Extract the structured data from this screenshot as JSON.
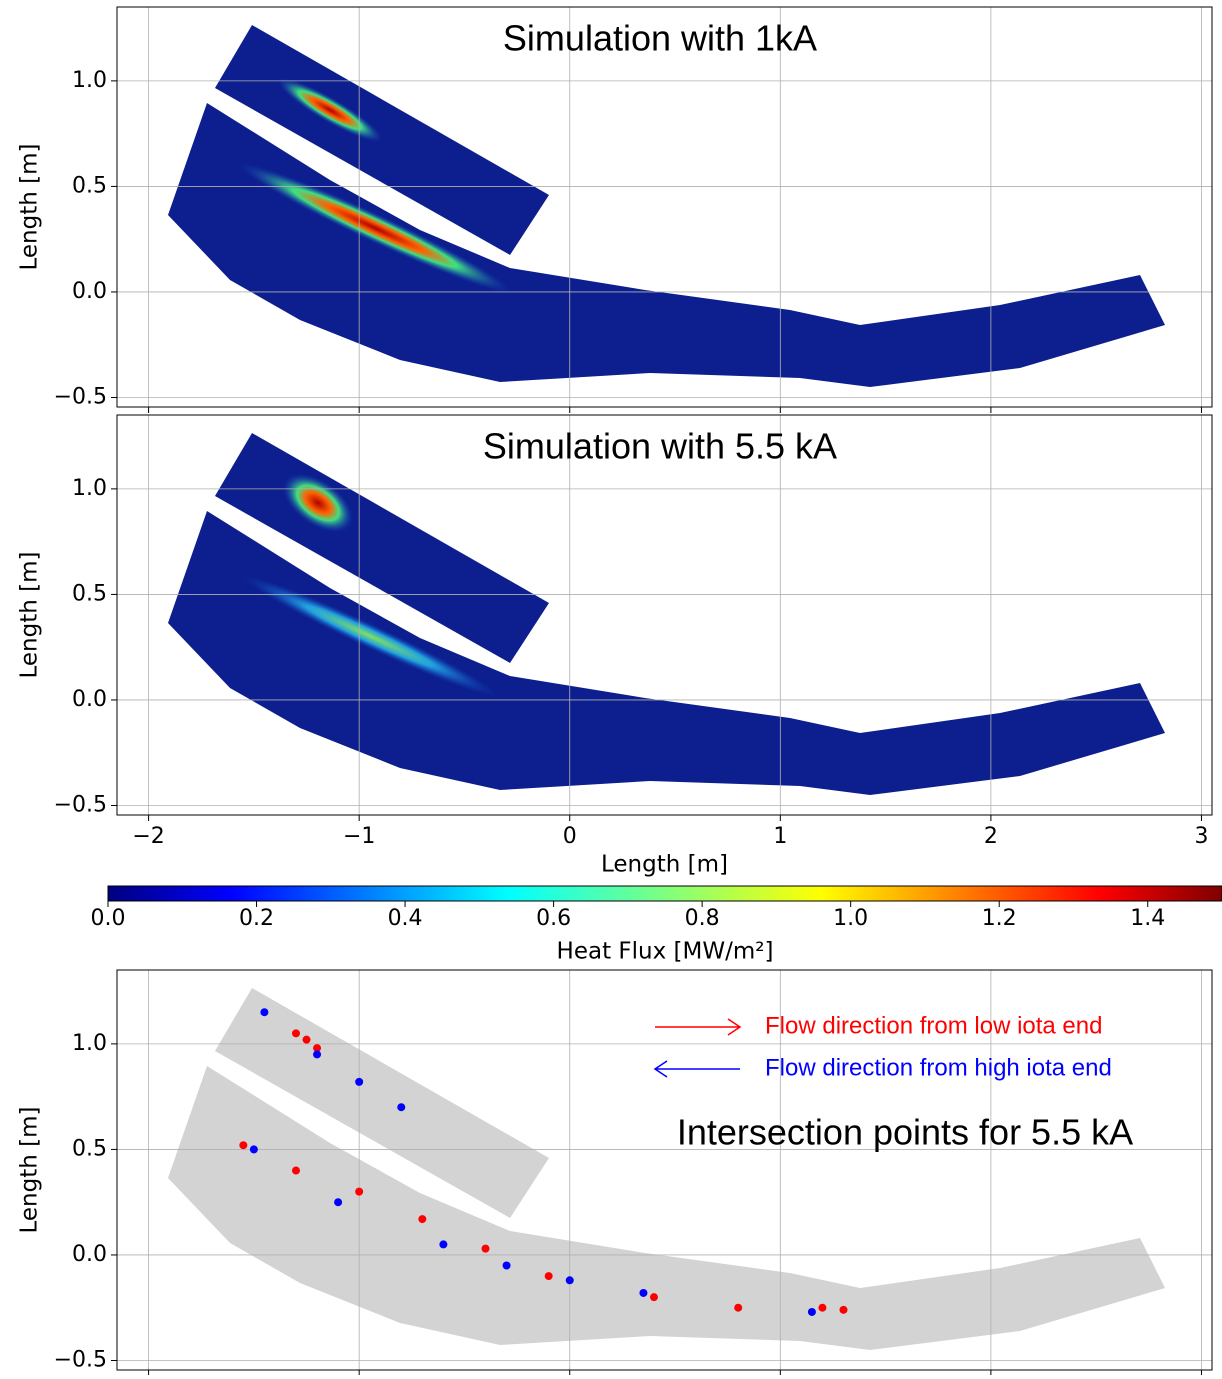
{
  "chart_data": [
    {
      "type": "heatmap",
      "title": "Simulation with 1kA",
      "ylabel": "Length [m]",
      "xlim": [
        -2.15,
        3.05
      ],
      "ylim": [
        -0.545,
        1.35
      ],
      "grid": true,
      "show_xtick_labels": false,
      "xticks": [
        -2,
        -1,
        0,
        1,
        2,
        3
      ],
      "yticks": [
        {
          "value": -0.5,
          "label": "−0.5"
        },
        {
          "value": 0,
          "label": "0.0"
        },
        {
          "value": 0.5,
          "label": "0.5"
        },
        {
          "value": 1,
          "label": "1.0"
        }
      ]
    },
    {
      "type": "heatmap",
      "title": "Simulation with 5.5 kA",
      "ylabel": "Length [m]",
      "xlabel": "Length [m]",
      "xlim": [
        -2.15,
        3.05
      ],
      "ylim": [
        -0.545,
        1.35
      ],
      "grid": true,
      "show_xtick_labels": true,
      "xticks": [
        {
          "value": -2,
          "label": "−2"
        },
        {
          "value": -1,
          "label": "−1"
        },
        0,
        1,
        2,
        3
      ],
      "yticks": [
        {
          "value": -0.5,
          "label": "−0.5"
        },
        {
          "value": 0,
          "label": "0.0"
        },
        {
          "value": 0.5,
          "label": "0.5"
        },
        {
          "value": 1,
          "label": "1.0"
        }
      ]
    },
    {
      "type": "colorbar",
      "xlabel": "Heat Flux [MW/m²]",
      "colormap": "jet",
      "xlim": [
        0,
        1.5
      ],
      "xticks": [
        {
          "value": 0,
          "label": "0.0"
        },
        {
          "value": 0.2,
          "label": "0.2"
        },
        {
          "value": 0.4,
          "label": "0.4"
        },
        {
          "value": 0.6,
          "label": "0.6"
        },
        {
          "value": 0.8,
          "label": "0.8"
        },
        {
          "value": 1,
          "label": "1.0"
        },
        {
          "value": 1.2,
          "label": "1.2"
        },
        {
          "value": 1.4,
          "label": "1.4"
        }
      ]
    },
    {
      "type": "scatter",
      "title": "Intersection points for 5.5 kA",
      "ylabel": "Length [m]",
      "xlim": [
        -2.15,
        3.05
      ],
      "ylim": [
        -0.545,
        1.35
      ],
      "grid": true,
      "show_xtick_labels": false,
      "xticks": [
        -2,
        -1,
        0,
        1,
        2,
        3
      ],
      "yticks": [
        {
          "value": -0.5,
          "label": "−0.5"
        },
        {
          "value": 0,
          "label": "0.0"
        },
        {
          "value": 0.5,
          "label": "0.5"
        },
        {
          "value": 1,
          "label": "1.0"
        }
      ],
      "series": [
        {
          "name": "Flow direction from low iota end",
          "color": "#ff0000",
          "x": [
            -1.25,
            -1.3,
            -1.2,
            -1.55,
            -1.3,
            -1.0,
            -0.7,
            -0.4,
            -0.1,
            0.4,
            0.8,
            1.2,
            1.3
          ],
          "y": [
            1.02,
            1.05,
            0.98,
            0.52,
            0.4,
            0.3,
            0.17,
            0.03,
            -0.1,
            -0.2,
            -0.25,
            -0.25,
            -0.26
          ]
        },
        {
          "name": "Flow direction from high iota end",
          "color": "#0000ff",
          "x": [
            -1.45,
            -1.2,
            -1.0,
            -0.8,
            -1.5,
            -1.1,
            -0.6,
            -0.3,
            0.0,
            0.35,
            1.15
          ],
          "y": [
            1.15,
            0.95,
            0.82,
            0.7,
            0.5,
            0.25,
            0.05,
            -0.05,
            -0.12,
            -0.18,
            -0.27
          ]
        }
      ]
    }
  ]
}
